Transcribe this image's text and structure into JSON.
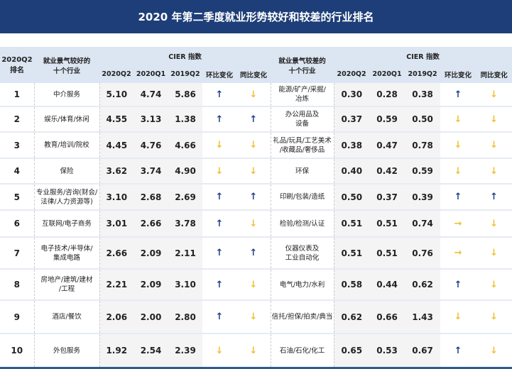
{
  "title": "2020 年第二季度就业形势较好和较差的行业排名",
  "header": {
    "rank": "2020Q2\n排名",
    "good": "就业景气较好的\n十个行业",
    "bad": "就业景气较差的\n十个行业",
    "index": "CIER 指数",
    "cols": [
      "2020Q2",
      "2020Q1",
      "2019Q2",
      "环比变化",
      "同比变化"
    ]
  },
  "colors": {
    "title_bg": "#1d3e78",
    "header_bg": "#dce6f2",
    "up": "#1f3f8c",
    "down": "#f0c030"
  },
  "rows": [
    {
      "rank": "1",
      "good": "中介服务",
      "g": [
        "5.10",
        "4.74",
        "5.86"
      ],
      "ghb": "up",
      "gtb": "down",
      "bad": "能源/矿产/采掘/\n冶炼",
      "b": [
        "0.30",
        "0.28",
        "0.38"
      ],
      "bhb": "up",
      "btb": "down"
    },
    {
      "rank": "2",
      "good": "娱乐/体育/休闲",
      "g": [
        "4.55",
        "3.13",
        "1.38"
      ],
      "ghb": "up",
      "gtb": "up",
      "bad": "办公用品及\n设备",
      "b": [
        "0.37",
        "0.59",
        "0.50"
      ],
      "bhb": "down",
      "btb": "down"
    },
    {
      "rank": "3",
      "good": "教育/培训/院校",
      "g": [
        "4.45",
        "4.76",
        "4.66"
      ],
      "ghb": "down",
      "gtb": "down",
      "bad": "礼品/玩具/工艺美术\n/收藏品/奢侈品",
      "b": [
        "0.38",
        "0.47",
        "0.78"
      ],
      "bhb": "down",
      "btb": "down"
    },
    {
      "rank": "4",
      "good": "保险",
      "g": [
        "3.62",
        "3.74",
        "4.90"
      ],
      "ghb": "down",
      "gtb": "down",
      "bad": "环保",
      "b": [
        "0.40",
        "0.42",
        "0.59"
      ],
      "bhb": "down",
      "btb": "down"
    },
    {
      "rank": "5",
      "good": "专业服务/咨询(财会/\n法律/人力资源等)",
      "g": [
        "3.10",
        "2.68",
        "2.69"
      ],
      "ghb": "up",
      "gtb": "up",
      "bad": "印刷/包装/造纸",
      "b": [
        "0.50",
        "0.37",
        "0.39"
      ],
      "bhb": "up",
      "btb": "up"
    },
    {
      "rank": "6",
      "good": "互联网/电子商务",
      "g": [
        "3.01",
        "2.66",
        "3.78"
      ],
      "ghb": "up",
      "gtb": "down",
      "bad": "检验/检测/认证",
      "b": [
        "0.51",
        "0.51",
        "0.74"
      ],
      "bhb": "right",
      "btb": "down"
    },
    {
      "rank": "7",
      "good": "电子技术/半导体/\n集成电路",
      "g": [
        "2.66",
        "2.09",
        "2.11"
      ],
      "ghb": "up",
      "gtb": "up",
      "bad": "仪器仪表及\n工业自动化",
      "b": [
        "0.51",
        "0.51",
        "0.76"
      ],
      "bhb": "right",
      "btb": "down"
    },
    {
      "rank": "8",
      "good": "房地产/建筑/建材\n/工程",
      "g": [
        "2.21",
        "2.09",
        "3.10"
      ],
      "ghb": "up",
      "gtb": "down",
      "bad": "电气/电力/水利",
      "b": [
        "0.58",
        "0.44",
        "0.62"
      ],
      "bhb": "up",
      "btb": "down"
    },
    {
      "rank": "9",
      "good": "酒店/餐饮",
      "g": [
        "2.06",
        "2.00",
        "2.80"
      ],
      "ghb": "up",
      "gtb": "down",
      "bad": "信托/担保/拍卖/典当",
      "b": [
        "0.62",
        "0.66",
        "1.43"
      ],
      "bhb": "down",
      "btb": "down"
    },
    {
      "rank": "10",
      "good": "外包服务",
      "g": [
        "1.92",
        "2.54",
        "2.39"
      ],
      "ghb": "down",
      "gtb": "down",
      "bad": "石油/石化/化工",
      "b": [
        "0.65",
        "0.53",
        "0.67"
      ],
      "bhb": "up",
      "btb": "down"
    }
  ]
}
